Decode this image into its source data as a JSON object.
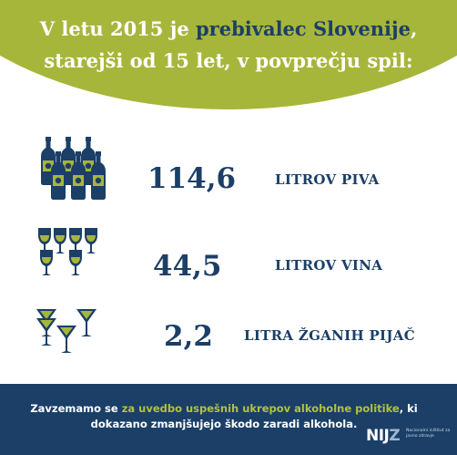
{
  "header": {
    "line1_pre": "V letu 2015 je ",
    "line1_highlight": "prebivalec Slovenije",
    "line1_post": ",",
    "line2": "starejši od 15 let, v povprečju spil:"
  },
  "rows": [
    {
      "icon": "beer-bottles-icon",
      "value": "114,6",
      "unit": "LITROV PIVA"
    },
    {
      "icon": "wine-glasses-icon",
      "value": "44,5",
      "unit": "LITROV VINA"
    },
    {
      "icon": "cocktail-glasses-icon",
      "value": "2,2",
      "unit": "LITRA ŽGANIH PIJAČ"
    }
  ],
  "footer": {
    "text_pre": "Zavzemamo se ",
    "text_highlight": "za uvedbo uspešnih ukrepov alkoholne politike",
    "text_post": ", ki dokazano zmanjšujejo škodo zaradi alkohola."
  },
  "logo": {
    "mark_main": "NIJ",
    "mark_accent": "Z",
    "subtitle": "Nacionalni inštitut za javno zdravje"
  },
  "colors": {
    "accent_green": "#a6b63a",
    "navy": "#1b3f67",
    "white": "#ffffff"
  }
}
